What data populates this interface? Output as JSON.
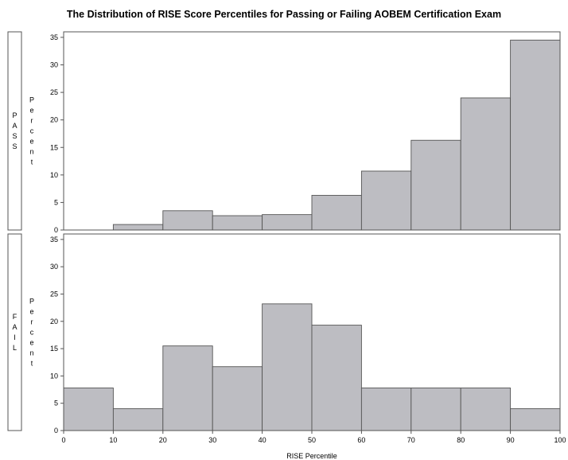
{
  "chart_data": {
    "type": "bar",
    "title": "The Distribution of RISE Score Percentiles for Passing or Failing AOBEM Certification Exam",
    "xlabel": "RISE Percentile",
    "ylabel": "Percent",
    "bin_edges": [
      0,
      10,
      20,
      30,
      40,
      50,
      60,
      70,
      80,
      90,
      100
    ],
    "xticks": [
      0,
      10,
      20,
      30,
      40,
      50,
      60,
      70,
      80,
      90,
      100
    ],
    "yticks": [
      0,
      5,
      10,
      15,
      20,
      25,
      30,
      35
    ],
    "xlim": [
      0,
      100
    ],
    "ylim": [
      0,
      36
    ],
    "grid": false,
    "bar_color": "#bdbdc2",
    "panels": [
      {
        "label": "PASS",
        "values": [
          0,
          1.0,
          3.5,
          2.6,
          2.8,
          6.3,
          10.7,
          16.3,
          24.0,
          34.5
        ]
      },
      {
        "label": "FAIL",
        "values": [
          7.8,
          4.0,
          15.5,
          11.7,
          23.2,
          19.3,
          7.8,
          7.8,
          7.8,
          4.0
        ]
      }
    ]
  }
}
